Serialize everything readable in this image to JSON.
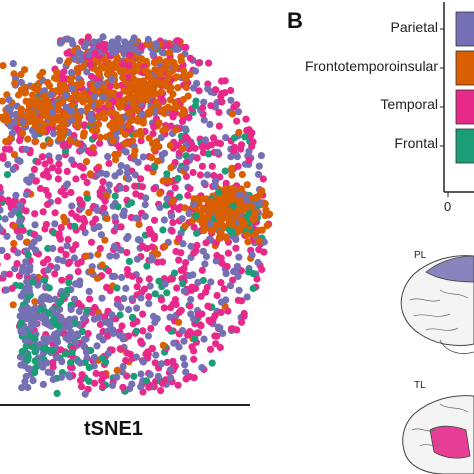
{
  "colors": {
    "parietal": "#7570b3",
    "frontotemporoinsular": "#d95f02",
    "temporal": "#e7298a",
    "frontal": "#1b9e77"
  },
  "chart_data": [
    {
      "type": "scatter",
      "panel": "",
      "xlabel": "tSNE1",
      "ylabel": "",
      "grid": false,
      "series_note": "points colored by lobe",
      "series": [
        {
          "name": "Parietal",
          "color_key": "parietal"
        },
        {
          "name": "Frontotemporoinsular",
          "color_key": "frontotemporoinsular"
        },
        {
          "name": "Temporal",
          "color_key": "temporal"
        },
        {
          "name": "Frontal",
          "color_key": "frontal"
        }
      ]
    },
    {
      "type": "bar",
      "panel": "B",
      "categories": [
        "Parietal",
        "Frontotemporoinsular",
        "Temporal",
        "Frontal"
      ],
      "x_tick_labels": [
        "0"
      ],
      "grid": false
    }
  ],
  "brain_labels": [
    "PL",
    "TL"
  ]
}
